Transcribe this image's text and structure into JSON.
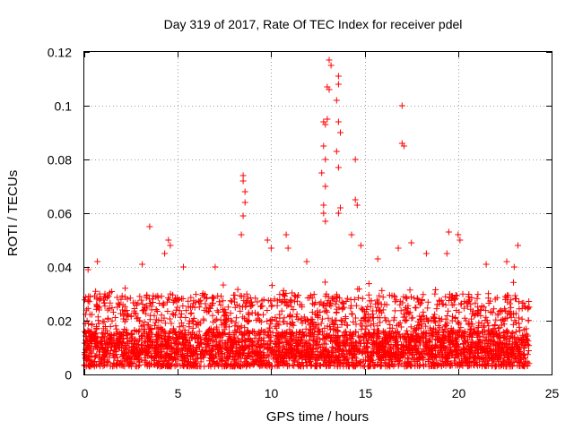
{
  "chart_data": {
    "type": "scatter",
    "title": "Day 319 of 2017, Rate Of TEC Index for receiver pdel",
    "xlabel": "GPS time / hours",
    "ylabel": "ROTI / TECUs",
    "xlim": [
      0,
      25
    ],
    "ylim": [
      0,
      0.12
    ],
    "xticks": [
      0,
      5,
      10,
      15,
      20,
      25
    ],
    "yticks": [
      0,
      0.02,
      0.04,
      0.06,
      0.08,
      0.1,
      0.12
    ],
    "xtick_labels": [
      "0",
      "5",
      "10",
      "15",
      "20",
      "25"
    ],
    "ytick_labels": [
      "0",
      "0.02",
      "0.04",
      "0.06",
      "0.08",
      "0.1",
      "0.12"
    ],
    "grid": true,
    "marker": "+",
    "color": "#ff0000",
    "series": [
      {
        "name": "ROTI",
        "description": "dense cloud of samples between about 0.003 and 0.03 TECU/s across 0-23.8 h, with spikes",
        "data_range_x": [
          0,
          23.8
        ],
        "baseline_range_y": [
          0.003,
          0.03
        ],
        "points": [
          [
            3.5,
            0.055
          ],
          [
            4.5,
            0.05
          ],
          [
            4.6,
            0.048
          ],
          [
            4.3,
            0.045
          ],
          [
            8.5,
            0.074
          ],
          [
            8.5,
            0.072
          ],
          [
            8.6,
            0.068
          ],
          [
            8.6,
            0.064
          ],
          [
            8.5,
            0.059
          ],
          [
            8.4,
            0.052
          ],
          [
            9.8,
            0.05
          ],
          [
            10.0,
            0.047
          ],
          [
            10.8,
            0.052
          ],
          [
            10.9,
            0.047
          ],
          [
            12.8,
            0.094
          ],
          [
            12.9,
            0.093
          ],
          [
            12.8,
            0.085
          ],
          [
            12.9,
            0.08
          ],
          [
            12.7,
            0.075
          ],
          [
            12.9,
            0.07
          ],
          [
            12.8,
            0.063
          ],
          [
            12.8,
            0.06
          ],
          [
            12.9,
            0.057
          ],
          [
            13.1,
            0.117
          ],
          [
            13.2,
            0.115
          ],
          [
            13.0,
            0.107
          ],
          [
            13.1,
            0.106
          ],
          [
            13.0,
            0.095
          ],
          [
            13.6,
            0.111
          ],
          [
            13.6,
            0.108
          ],
          [
            13.5,
            0.102
          ],
          [
            13.6,
            0.094
          ],
          [
            13.7,
            0.09
          ],
          [
            13.5,
            0.083
          ],
          [
            13.6,
            0.077
          ],
          [
            13.7,
            0.062
          ],
          [
            13.6,
            0.06
          ],
          [
            14.5,
            0.08
          ],
          [
            14.5,
            0.065
          ],
          [
            14.6,
            0.063
          ],
          [
            14.3,
            0.052
          ],
          [
            14.8,
            0.048
          ],
          [
            17.0,
            0.1
          ],
          [
            17.0,
            0.086
          ],
          [
            17.1,
            0.085
          ],
          [
            17.5,
            0.049
          ],
          [
            16.8,
            0.047
          ],
          [
            19.5,
            0.053
          ],
          [
            19.4,
            0.045
          ],
          [
            20.0,
            0.052
          ],
          [
            20.1,
            0.05
          ],
          [
            22.6,
            0.042
          ],
          [
            23.2,
            0.048
          ],
          [
            23.0,
            0.04
          ],
          [
            0.2,
            0.039
          ],
          [
            0.7,
            0.042
          ],
          [
            3.1,
            0.041
          ],
          [
            5.3,
            0.04
          ],
          [
            7.0,
            0.04
          ],
          [
            11.9,
            0.042
          ],
          [
            15.7,
            0.043
          ],
          [
            18.3,
            0.045
          ],
          [
            21.5,
            0.041
          ]
        ]
      }
    ]
  }
}
